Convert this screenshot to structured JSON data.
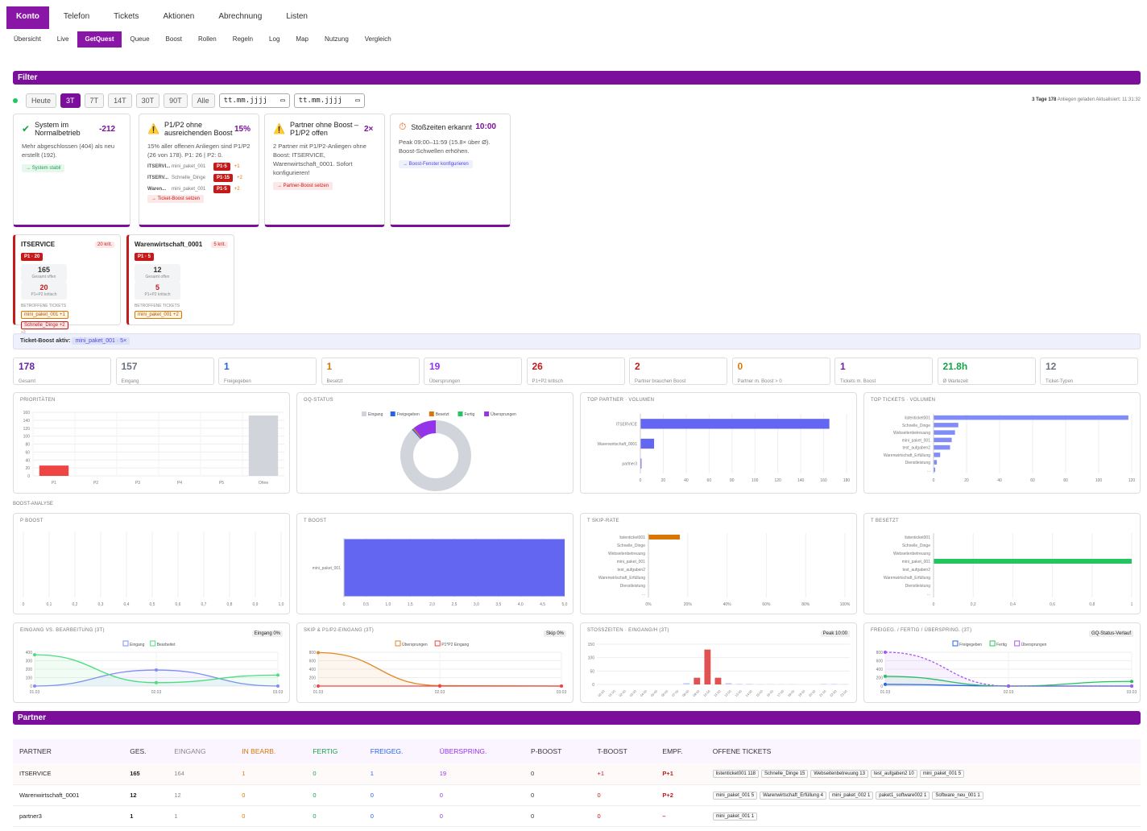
{
  "nav": {
    "top": [
      "Konto",
      "Telefon",
      "Tickets",
      "Aktionen",
      "Abrechnung",
      "Listen"
    ],
    "sub": [
      "Übersicht",
      "Live",
      "GetQuest",
      "Queue",
      "Boost",
      "Rollen",
      "Regeln",
      "Log",
      "Map",
      "Nutzung",
      "Vergleich"
    ]
  },
  "filter": {
    "title": "Filter",
    "buttons": [
      "Heute",
      "3T",
      "7T",
      "14T",
      "30T",
      "90T",
      "Alle"
    ],
    "date_placeholder": "tt.mm.jjjj",
    "load_days": "3 Tage",
    "load_count": "178",
    "load_text": "Anliegen geladen",
    "updated": "Aktualisiert: 11:31:32"
  },
  "cards": [
    {
      "title": "System im Normalbetrieb",
      "value": "-212",
      "text": "Mehr abgeschlossen (404) als neu erstellt (192).",
      "link": "→ System stabil"
    },
    {
      "title": "P1/P2 ohne ausreichenden Boost",
      "value": "15%",
      "text": "15% aller offenen Anliegen sind P1/P2 (26 von 178). P1: 26 | P2: 0.",
      "rows": [
        {
          "p": "ITSERVI...",
          "t": "mini_paket_001",
          "tag": "P1·5",
          "n": "+1"
        },
        {
          "p": "ITSERV...",
          "t": "Schnelle_Dinge",
          "tag": "P1·15",
          "n": "+2"
        },
        {
          "p": "Waren...",
          "t": "mini_paket_001",
          "tag": "P1·5",
          "n": "+2"
        }
      ],
      "link": "→ Ticket-Boost setzen"
    },
    {
      "title": "Partner ohne Boost – P1/P2 offen",
      "value": "2×",
      "text": "2 Partner mit P1/P2-Anliegen ohne Boost: ITSERVICE, Warenwirtschaft_0001. Sofort konfigurieren!",
      "link": "→ Partner-Boost setzen"
    },
    {
      "title": "Stoßzeiten erkannt",
      "value": "10:00",
      "text": "Peak 09:00–11:59 (15.8× über Ø). Boost-Schwellen erhöhen.",
      "link": "→ Boost-Fenster konfigurieren"
    }
  ],
  "partners_crit": [
    {
      "name": "ITSERVICE",
      "krit": "20 krit.",
      "tag": "P1 · 20",
      "total": "165",
      "total_label": "Gesamt offen",
      "krit_n": "20",
      "krit_label": "P1+P2 kritisch",
      "aff": "BETROFFENE TICKETS",
      "tickets": [
        "mini_paket_001 +1",
        "Schnelle_Dinge +2"
      ],
      "more": "+3"
    },
    {
      "name": "Warenwirtschaft_0001",
      "krit": "5 krit.",
      "tag": "P1 · 5",
      "total": "12",
      "total_label": "Gesamt offen",
      "krit_n": "5",
      "krit_label": "P1+P2 kritisch",
      "aff": "BETROFFENE TICKETS",
      "tickets": [
        "mini_paket_001 +2"
      ],
      "more": ""
    }
  ],
  "boost_active": {
    "label": "Ticket-Boost aktiv:",
    "value": "mini_paket_001 · 5×"
  },
  "kpis": [
    {
      "v": "178",
      "l": "Gesamt",
      "c": "#6b21a8"
    },
    {
      "v": "157",
      "l": "Eingang",
      "c": "#6b7280"
    },
    {
      "v": "1",
      "l": "Freigegeben",
      "c": "#2563eb"
    },
    {
      "v": "1",
      "l": "Besetzt",
      "c": "#d97706"
    },
    {
      "v": "19",
      "l": "Übersprungen",
      "c": "#9333ea"
    },
    {
      "v": "26",
      "l": "P1+P2 kritisch",
      "c": "#c41a1a"
    },
    {
      "v": "2",
      "l": "Partner brauchen Boost",
      "c": "#c41a1a"
    },
    {
      "v": "0",
      "l": "Partner m. Boost > 0",
      "c": "#d97706"
    },
    {
      "v": "1",
      "l": "Tickets m. Boost",
      "c": "#6b21a8"
    },
    {
      "v": "21.8h",
      "l": "Ø Wartezeit",
      "c": "#16a34a"
    },
    {
      "v": "12",
      "l": "Ticket-Typen",
      "c": "#6b7280"
    }
  ],
  "panels": {
    "prio": "PRIORITÄTEN",
    "gq": "GQ-STATUS",
    "top_partner": "TOP PARTNER · VOLUMEN",
    "top_tickets": "TOP TICKETS · VOLUMEN",
    "boost_analysis": "BOOST-ANALYSE",
    "p_boost": "P BOOST",
    "t_boost": "T BOOST",
    "t_skip": "T SKIP-RATE",
    "t_besetzt": "T BESETZT",
    "eingang": "EINGANG VS. BEARBEITUNG (3T)",
    "eingang_badge": "Eingang 0%",
    "skip": "SKIP & P1/P2-EINGANG (3T)",
    "skip_badge": "Skip 0%",
    "stoss": "STOSSZEITEN · EINGANG/H (3T)",
    "stoss_badge": "Peak 10:00",
    "freig": "FREIGEG. / FERTIG / ÜBERSPRING. (3T)",
    "freig_badge": "GQ-Status-Verlauf"
  },
  "chart_data": [
    {
      "type": "bar",
      "title": "PRIORITÄTEN",
      "categories": [
        "P1",
        "P2",
        "P3",
        "P4",
        "P5",
        "Ohne"
      ],
      "values": [
        26,
        0,
        0,
        0,
        0,
        152
      ],
      "ylim": [
        0,
        160
      ],
      "yticks": [
        0,
        20,
        40,
        60,
        80,
        100,
        120,
        140,
        160
      ]
    },
    {
      "type": "pie",
      "title": "GQ-STATUS",
      "labels": [
        "Eingang",
        "Freigegeben",
        "Besetzt",
        "Fertig",
        "Übersprungen"
      ],
      "values": [
        157,
        1,
        1,
        0,
        19
      ]
    },
    {
      "type": "bar",
      "title": "TOP PARTNER · VOLUMEN",
      "categories": [
        "ITSERVICE",
        "Warenwirtschaft_0001",
        "partner3"
      ],
      "values": [
        165,
        12,
        1
      ],
      "xlim": [
        0,
        180
      ],
      "xticks": [
        0,
        20,
        40,
        60,
        80,
        100,
        120,
        140,
        160,
        180
      ]
    },
    {
      "type": "bar",
      "title": "TOP TICKETS · VOLUMEN",
      "categories": [
        "listenticket001",
        "Schnelle_Dinge",
        "Webseitenbetreuung",
        "mini_paket_001",
        "test_aufgaben2",
        "Warenwirtschaft_Erfüllung",
        "Dienstleistung",
        "..."
      ],
      "values": [
        118,
        15,
        13,
        11,
        10,
        4,
        2,
        1
      ],
      "xlim": [
        0,
        120
      ],
      "xticks": [
        0,
        20,
        40,
        60,
        80,
        100,
        120
      ]
    },
    {
      "type": "bar",
      "title": "P BOOST",
      "categories": [],
      "values": [],
      "xticks": [
        "0",
        "0,1",
        "0,2",
        "0,3",
        "0,4",
        "0,5",
        "0,6",
        "0,7",
        "0,8",
        "0,9",
        "1,0"
      ]
    },
    {
      "type": "bar",
      "title": "T BOOST",
      "categories": [
        "mini_paket_001"
      ],
      "values": [
        5
      ],
      "xlim": [
        0,
        5
      ],
      "xticks": [
        "0",
        "0,5",
        "1,0",
        "1,5",
        "2,0",
        "2,5",
        "3,0",
        "3,5",
        "4,0",
        "4,5",
        "5,0"
      ]
    },
    {
      "type": "bar",
      "title": "T SKIP-RATE",
      "categories": [
        "listenticket001",
        "Schnelle_Dinge",
        "Webseitenbetreuung",
        "mini_paket_001",
        "test_aufgaben2",
        "Warenwirtschaft_Erfüllung",
        "Dienstleistung",
        "..."
      ],
      "values": [
        16,
        0,
        0,
        0,
        0,
        0,
        0,
        0
      ],
      "xlim": [
        0,
        100
      ],
      "xticks": [
        "0%",
        "20%",
        "40%",
        "60%",
        "80%",
        "100%"
      ]
    },
    {
      "type": "bar",
      "title": "T BESETZT",
      "categories": [
        "listenticket001",
        "Schnelle_Dinge",
        "Webseitenbetreuung",
        "mini_paket_001",
        "test_aufgaben2",
        "Warenwirtschaft_Erfüllung",
        "Dienstleistung",
        "..."
      ],
      "values": [
        0,
        0,
        0,
        1,
        0,
        0,
        0,
        0
      ],
      "xlim": [
        0,
        1
      ],
      "xticks": [
        "0",
        "0,2",
        "0,4",
        "0,6",
        "0,8",
        "1"
      ]
    },
    {
      "type": "line",
      "title": "EINGANG VS. BEARBEITUNG (3T)",
      "x": [
        "01.03",
        "02.03",
        "03.03"
      ],
      "series": [
        {
          "name": "Eingang",
          "values": [
            0,
            190,
            0
          ]
        },
        {
          "name": "Bearbeitet",
          "values": [
            370,
            40,
            130
          ]
        }
      ],
      "ylim": [
        0,
        400
      ]
    },
    {
      "type": "line",
      "title": "SKIP & P1/P2-EINGANG (3T)",
      "x": [
        "01.03",
        "02.03",
        "03.03"
      ],
      "series": [
        {
          "name": "Übersprungen",
          "values": [
            790,
            10,
            0
          ]
        },
        {
          "name": "P1*P2 Eingang",
          "values": [
            0,
            0,
            0
          ]
        }
      ],
      "ylim": [
        0,
        800
      ]
    },
    {
      "type": "bar",
      "title": "STOSSZEITEN · EINGANG/H (3T)",
      "categories": [
        "00:00",
        "01:00",
        "02:00",
        "03:00",
        "04:00",
        "05:00",
        "06:00",
        "07:00",
        "08:00",
        "09:00",
        "10:00",
        "11:00",
        "12:00",
        "13:00",
        "14:00",
        "15:00",
        "16:00",
        "17:00",
        "18:00",
        "19:00",
        "20:00",
        "21:00",
        "22:00",
        "23:00"
      ],
      "values": [
        0,
        0,
        0,
        0,
        0,
        0,
        0,
        0,
        5,
        25,
        130,
        25,
        5,
        2,
        2,
        1,
        1,
        1,
        1,
        0,
        0,
        2,
        2,
        1
      ],
      "ylim": [
        0,
        150
      ]
    },
    {
      "type": "line",
      "title": "FREIGEG. / FERTIG / ÜBERSPRING. (3T)",
      "x": [
        "01.03",
        "02.03",
        "03.03"
      ],
      "series": [
        {
          "name": "Freigegeben",
          "values": [
            40,
            0,
            0
          ]
        },
        {
          "name": "Fertig",
          "values": [
            230,
            0,
            110
          ]
        },
        {
          "name": "Übersprungen",
          "values": [
            800,
            0,
            0
          ]
        }
      ],
      "ylim": [
        0,
        800
      ]
    }
  ],
  "partner_section": "Partner",
  "table": {
    "headers": [
      "PARTNER",
      "GES.",
      "EINGANG",
      "IN BEARB.",
      "FERTIG",
      "FREIGEG.",
      "ÜBERSPRING.",
      "P-BOOST",
      "T-BOOST",
      "EMPF.",
      "OFFENE TICKETS"
    ],
    "rows": [
      {
        "cells": [
          "ITSERVICE",
          "165",
          "164",
          "1",
          "0",
          "1",
          "19",
          "0",
          "+1",
          "P+1"
        ],
        "chips": [
          "listenticket001 118",
          "Schnelle_Dinge 15",
          "Webseitenbetreuung 13",
          "test_aufgaben2 10",
          "mini_paket_001 5"
        ]
      },
      {
        "cells": [
          "Warenwirtschaft_0001",
          "12",
          "12",
          "0",
          "0",
          "0",
          "0",
          "0",
          "0",
          "P+2"
        ],
        "chips": [
          "mini_paket_001 5",
          "Warenwirtschaft_Erfüllung 4",
          "mini_paket_002 1",
          "paket1_software002 1",
          "Software_neu_001 1"
        ]
      },
      {
        "cells": [
          "partner3",
          "1",
          "1",
          "0",
          "0",
          "0",
          "0",
          "0",
          "0",
          "–"
        ],
        "chips": [
          "mini_paket_001 1"
        ]
      }
    ]
  }
}
